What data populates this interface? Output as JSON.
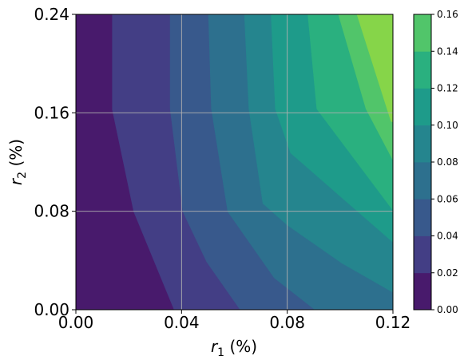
{
  "chart_data": {
    "type": "contour",
    "title": "",
    "x_var": "r",
    "x_sub": "1",
    "x_unit": "(%)",
    "y_var": "r",
    "y_sub": "2",
    "y_unit": "(%)",
    "xlim": [
      0,
      0.12
    ],
    "ylim": [
      0,
      0.24
    ],
    "x_ticks": [
      "0.00",
      "0.04",
      "0.08",
      "0.12"
    ],
    "y_ticks": [
      "0.00",
      "0.08",
      "0.16",
      "0.24"
    ],
    "grid": true,
    "colorbar": {
      "levels": [
        0.0,
        0.02,
        0.04,
        0.06,
        0.08,
        0.1,
        0.12,
        0.14,
        0.16
      ],
      "tick_labels": [
        "0.00",
        "0.02",
        "0.04",
        "0.06",
        "0.08",
        "0.10",
        "0.12",
        "0.14",
        "0.16"
      ],
      "colors": [
        "#481a6c",
        "#433e85",
        "#38598c",
        "#2d708e",
        "#25858e",
        "#1e9b8a",
        "#2ab07f",
        "#51c56a",
        "#86d549",
        "#c2df23",
        "#fde725"
      ]
    },
    "contour_boundaries": [
      {
        "level": 0.02,
        "points": [
          [
            0.0138,
            0.24
          ],
          [
            0.0138,
            0.1626
          ],
          [
            0.0219,
            0.0798
          ],
          [
            0.0372,
            0.0
          ]
        ]
      },
      {
        "level": 0.04,
        "points": [
          [
            0.0357,
            0.24
          ],
          [
            0.0357,
            0.1632
          ],
          [
            0.0405,
            0.0798
          ],
          [
            0.0495,
            0.0389
          ],
          [
            0.0622,
            0.0
          ]
        ]
      },
      {
        "level": 0.06,
        "points": [
          [
            0.0502,
            0.24
          ],
          [
            0.0513,
            0.1632
          ],
          [
            0.0575,
            0.0798
          ],
          [
            0.0751,
            0.0258
          ],
          [
            0.0905,
            0.0
          ]
        ]
      },
      {
        "level": 0.08,
        "points": [
          [
            0.0638,
            0.24
          ],
          [
            0.0655,
            0.1632
          ],
          [
            0.0708,
            0.0864
          ],
          [
            0.08,
            0.0688
          ],
          [
            0.1007,
            0.0379
          ],
          [
            0.12,
            0.0142
          ]
        ]
      },
      {
        "level": 0.1,
        "points": [
          [
            0.0739,
            0.24
          ],
          [
            0.0755,
            0.1632
          ],
          [
            0.0813,
            0.1273
          ],
          [
            0.12,
            0.0549
          ]
        ]
      },
      {
        "level": 0.12,
        "points": [
          [
            0.0878,
            0.24
          ],
          [
            0.0912,
            0.1632
          ],
          [
            0.12,
            0.0808
          ]
        ]
      },
      {
        "level": 0.14,
        "points": [
          [
            0.0994,
            0.24
          ],
          [
            0.1098,
            0.1632
          ],
          [
            0.12,
            0.1216
          ]
        ]
      },
      {
        "level": 0.16,
        "points": [
          [
            0.1064,
            0.24
          ],
          [
            0.1193,
            0.1531
          ],
          [
            0.12,
            0.1525
          ]
        ]
      }
    ]
  }
}
